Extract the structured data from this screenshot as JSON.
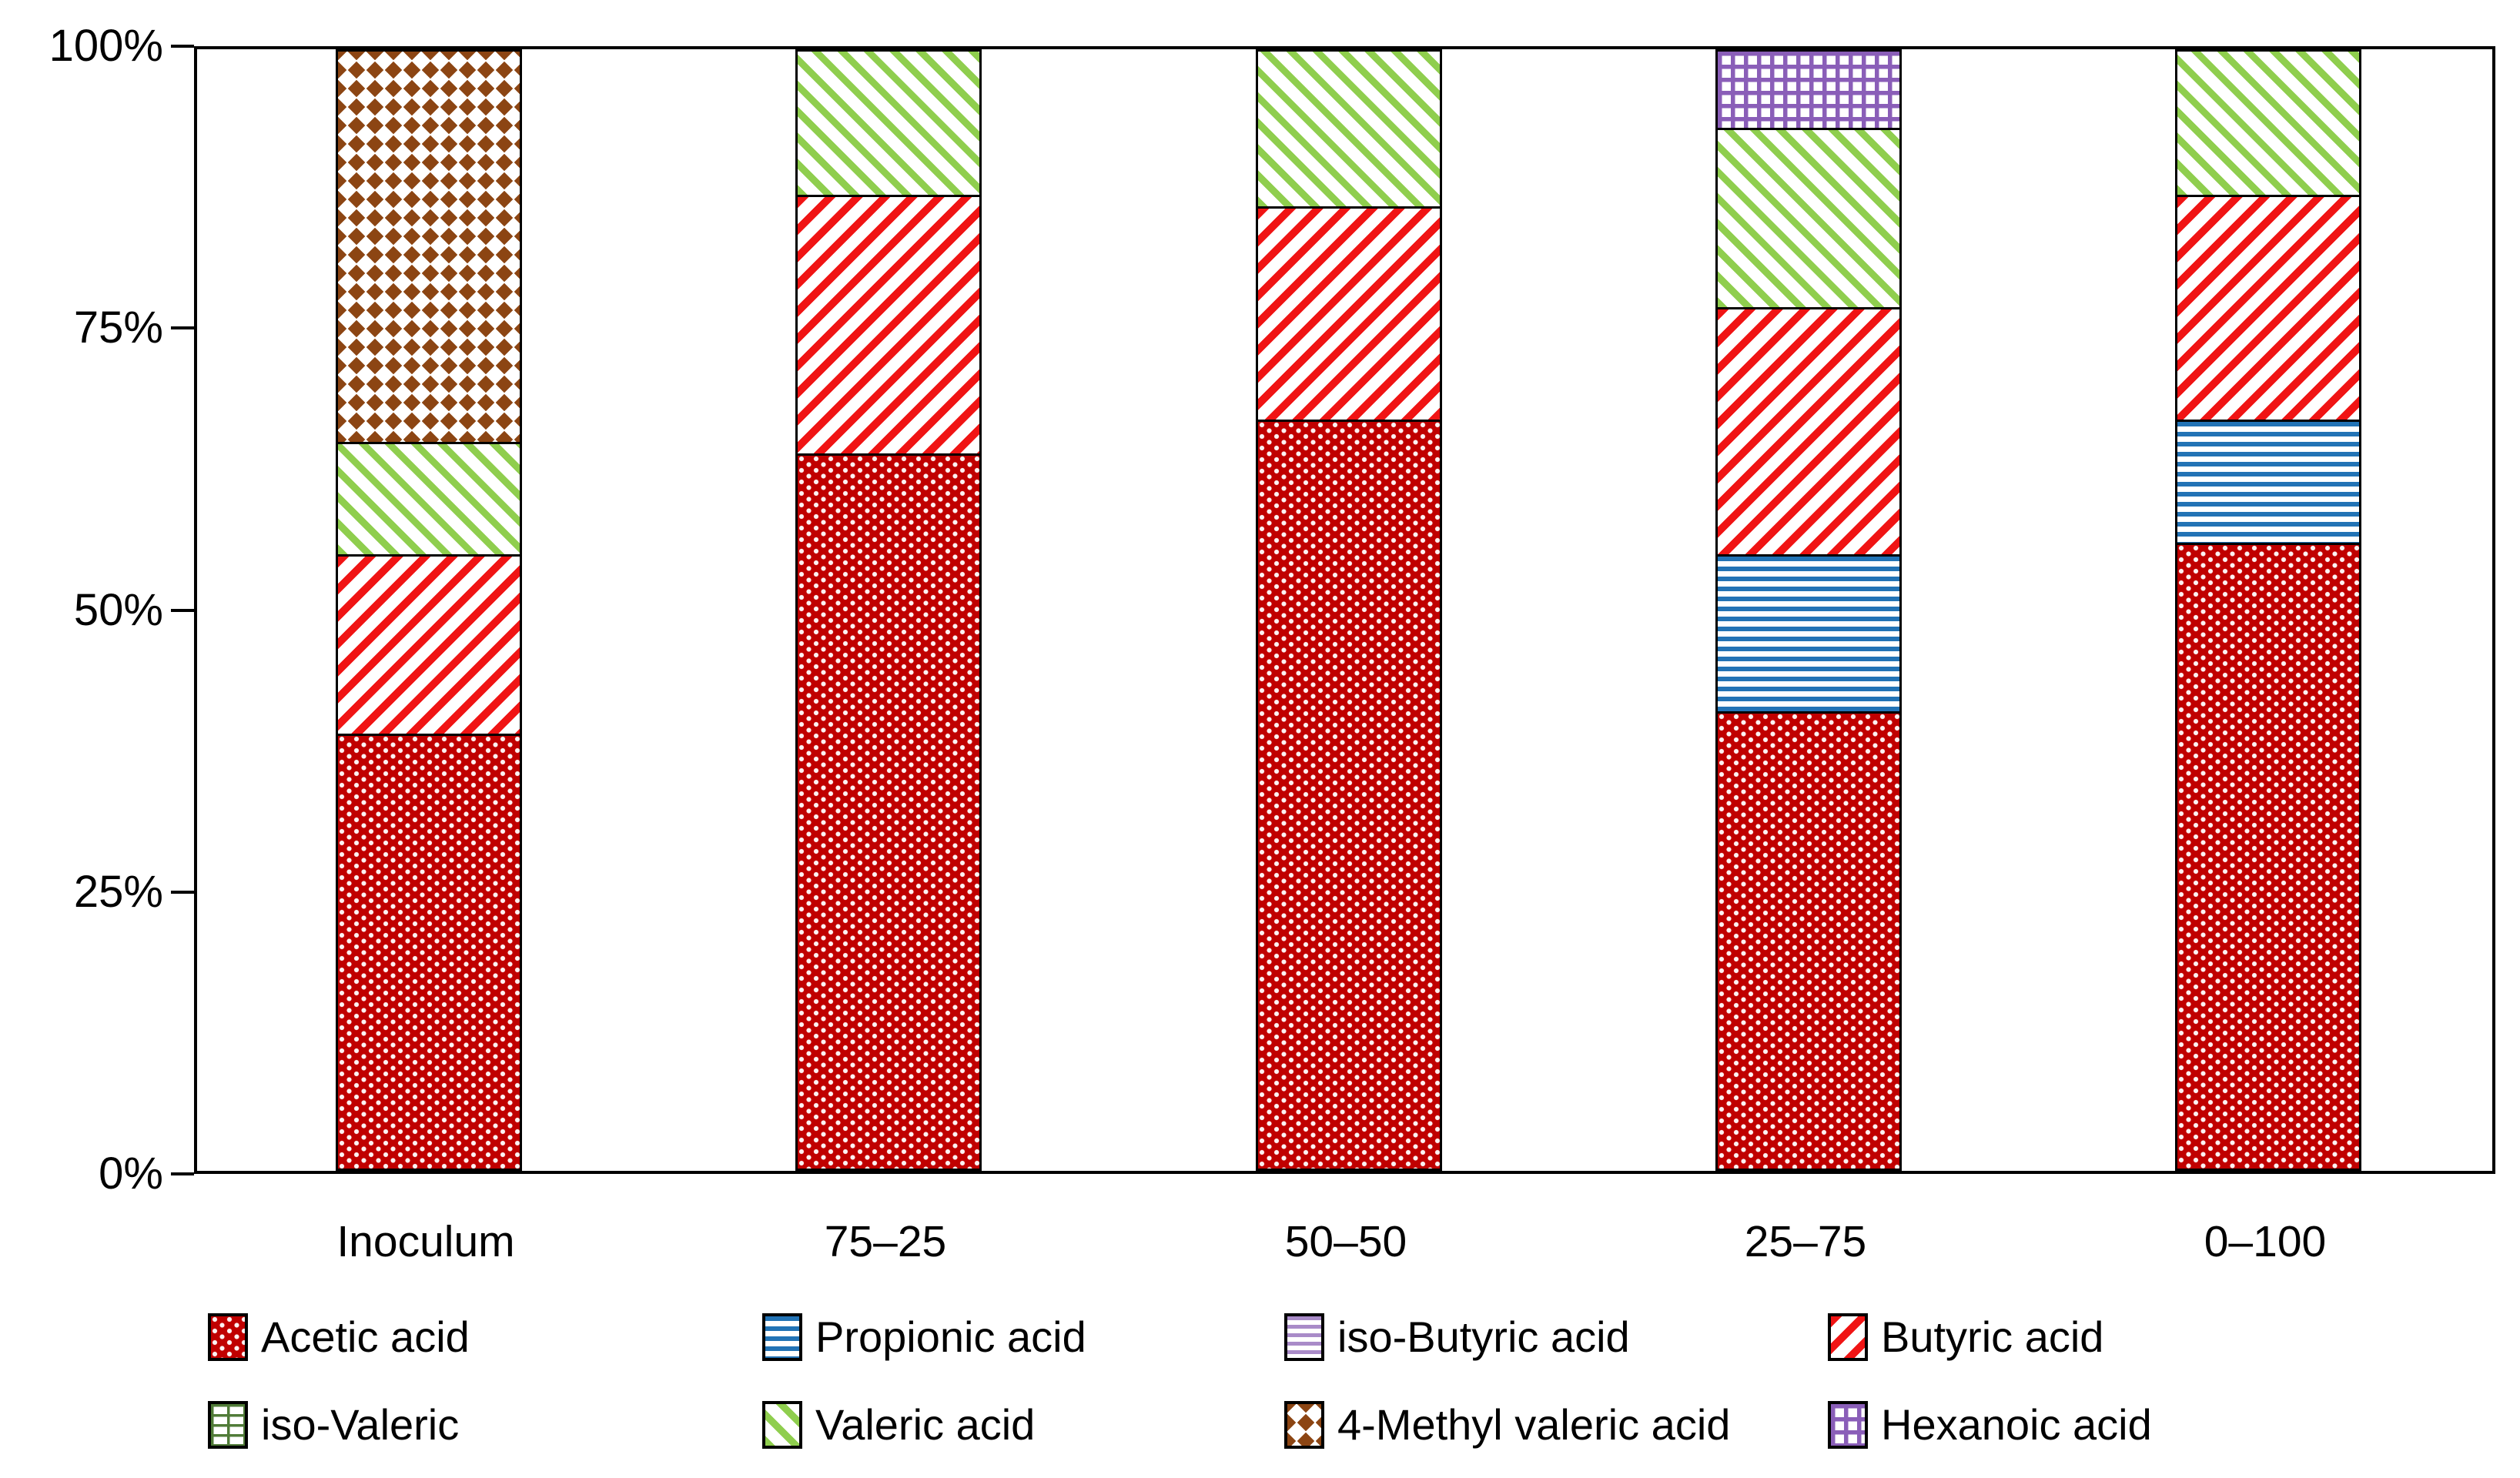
{
  "chart_data": {
    "type": "bar",
    "stacked": true,
    "units": "percent",
    "title": "",
    "xlabel": "",
    "ylabel": "",
    "categories": [
      "Inoculum",
      "75–25",
      "50–50",
      "25–75",
      "0–100"
    ],
    "series": [
      {
        "name": "Acetic acid",
        "pattern": "red-dots",
        "color": "#C00000",
        "values": [
          39,
          64,
          67,
          41,
          56
        ]
      },
      {
        "name": "Propionic acid",
        "pattern": "blue-hlines",
        "color": "#2273B5",
        "values": [
          0,
          0,
          0,
          14,
          11
        ]
      },
      {
        "name": "iso-Butyric acid",
        "pattern": "purple-hlines",
        "color": "#A98BC8",
        "values": [
          0,
          0,
          0,
          0,
          0
        ]
      },
      {
        "name": "Butyric acid",
        "pattern": "red-diag",
        "color": "#F01414",
        "values": [
          16,
          23,
          19,
          22,
          20
        ]
      },
      {
        "name": "iso-Valeric",
        "pattern": "green-bricks",
        "color": "#507B38",
        "values": [
          0,
          0,
          0,
          0,
          0
        ]
      },
      {
        "name": "Valeric acid",
        "pattern": "green-diag",
        "color": "#8FCE4E",
        "values": [
          10,
          13,
          14,
          16,
          13
        ]
      },
      {
        "name": "4-Methyl valeric acid",
        "pattern": "brown-diamonds",
        "color": "#8C4513",
        "values": [
          35,
          0,
          0,
          0,
          0
        ]
      },
      {
        "name": "Hexanoic acid",
        "pattern": "purple-grid",
        "color": "#8A5EB8",
        "values": [
          0,
          0,
          0,
          7,
          0
        ]
      }
    ],
    "y_ticks": [
      "100%",
      "75%",
      "50%",
      "25%",
      "0%"
    ],
    "y_tick_values": [
      100,
      75,
      50,
      25,
      0
    ],
    "ylim": [
      0,
      100
    ],
    "grid": false,
    "legend_position": "bottom",
    "legend_rows": 2
  },
  "colors": {
    "acetic_red": "#C00000",
    "propionic_blue": "#2273B5",
    "iso_butyric_purple": "#A98BC8",
    "butyric_red": "#F01414",
    "iso_valeric_green": "#507B38",
    "valeric_green": "#8FCE4E",
    "methyl_valeric_brown": "#8C4513",
    "hexanoic_purple": "#8A5EB8",
    "axis": "#000000",
    "background": "#FFFFFF"
  }
}
